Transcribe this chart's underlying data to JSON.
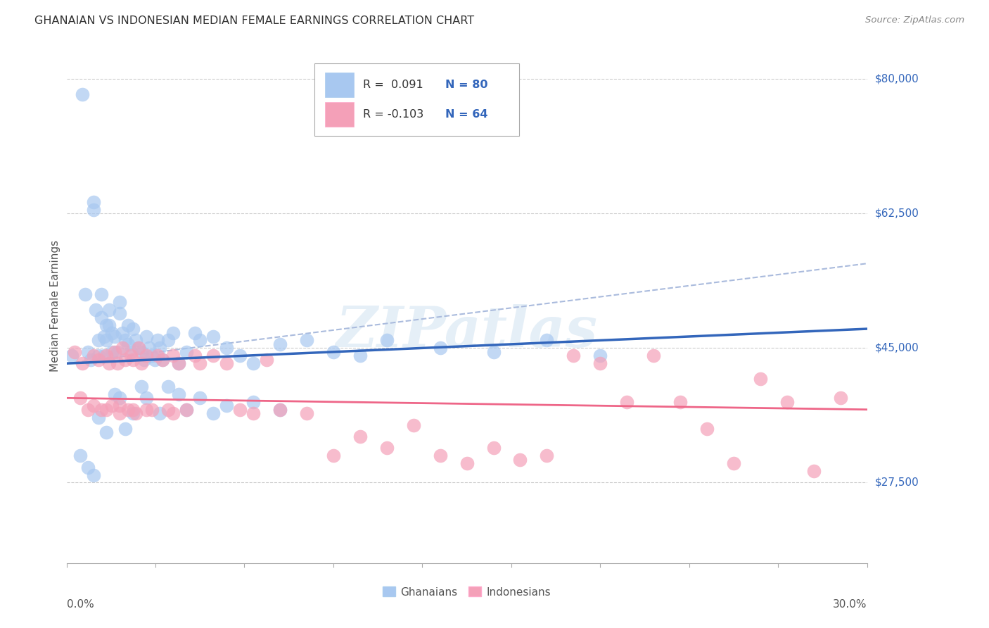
{
  "title": "GHANAIAN VS INDONESIAN MEDIAN FEMALE EARNINGS CORRELATION CHART",
  "source": "Source: ZipAtlas.com",
  "ylabel": "Median Female Earnings",
  "yticks": [
    27500,
    45000,
    62500,
    80000
  ],
  "ytick_labels": [
    "$27,500",
    "$45,000",
    "$62,500",
    "$80,000"
  ],
  "xmin": 0.0,
  "xmax": 0.3,
  "ymin": 17000,
  "ymax": 84000,
  "watermark": "ZIPatlas",
  "ghanaian_color": "#a8c8f0",
  "indonesian_color": "#f4a0b8",
  "line_color_ghanaian": "#3366bb",
  "line_color_indonesian": "#ee6688",
  "trend_ghanaian_x0": 0.0,
  "trend_ghanaian_y0": 43000,
  "trend_ghanaian_x1": 0.3,
  "trend_ghanaian_y1": 47500,
  "trend_indonesian_x0": 0.0,
  "trend_indonesian_y0": 38500,
  "trend_indonesian_x1": 0.3,
  "trend_indonesian_y1": 37000,
  "trend_dashed_x0": 0.0,
  "trend_dashed_y0": 43000,
  "trend_dashed_x1": 0.3,
  "trend_dashed_y1": 56000,
  "ghanaian_x": [
    0.002,
    0.006,
    0.007,
    0.008,
    0.009,
    0.01,
    0.01,
    0.011,
    0.012,
    0.012,
    0.013,
    0.013,
    0.014,
    0.014,
    0.015,
    0.015,
    0.016,
    0.016,
    0.017,
    0.017,
    0.018,
    0.019,
    0.02,
    0.02,
    0.021,
    0.022,
    0.023,
    0.023,
    0.024,
    0.025,
    0.026,
    0.027,
    0.028,
    0.029,
    0.03,
    0.031,
    0.032,
    0.033,
    0.034,
    0.035,
    0.036,
    0.038,
    0.04,
    0.042,
    0.045,
    0.048,
    0.05,
    0.055,
    0.06,
    0.065,
    0.07,
    0.08,
    0.09,
    0.1,
    0.11,
    0.12,
    0.14,
    0.16,
    0.18,
    0.2,
    0.005,
    0.008,
    0.01,
    0.012,
    0.015,
    0.018,
    0.02,
    0.022,
    0.025,
    0.028,
    0.03,
    0.035,
    0.038,
    0.042,
    0.045,
    0.05,
    0.055,
    0.06,
    0.07,
    0.08
  ],
  "ghanaian_y": [
    44000,
    78000,
    52000,
    44500,
    43500,
    63000,
    64000,
    50000,
    46000,
    44000,
    52000,
    49000,
    46500,
    44000,
    48000,
    46000,
    50000,
    48000,
    47000,
    44500,
    46500,
    44500,
    51000,
    49500,
    47000,
    46000,
    48000,
    45500,
    44500,
    47500,
    46000,
    45000,
    44500,
    43500,
    46500,
    45000,
    44000,
    43500,
    46000,
    45000,
    43500,
    46000,
    47000,
    43000,
    44500,
    47000,
    46000,
    46500,
    45000,
    44000,
    43000,
    45500,
    46000,
    44500,
    44000,
    46000,
    45000,
    44500,
    46000,
    44000,
    31000,
    29500,
    28500,
    36000,
    34000,
    39000,
    38500,
    34500,
    36500,
    40000,
    38500,
    36500,
    40000,
    39000,
    37000,
    38500,
    36500,
    37500,
    38000,
    37000
  ],
  "indonesian_x": [
    0.003,
    0.006,
    0.008,
    0.01,
    0.012,
    0.013,
    0.015,
    0.016,
    0.017,
    0.018,
    0.019,
    0.02,
    0.021,
    0.022,
    0.023,
    0.024,
    0.025,
    0.026,
    0.027,
    0.028,
    0.03,
    0.032,
    0.034,
    0.036,
    0.038,
    0.04,
    0.042,
    0.045,
    0.048,
    0.05,
    0.055,
    0.06,
    0.065,
    0.07,
    0.075,
    0.08,
    0.09,
    0.1,
    0.11,
    0.12,
    0.13,
    0.14,
    0.15,
    0.16,
    0.17,
    0.18,
    0.19,
    0.2,
    0.21,
    0.22,
    0.23,
    0.24,
    0.25,
    0.26,
    0.27,
    0.28,
    0.29,
    0.005,
    0.01,
    0.015,
    0.02,
    0.025,
    0.03,
    0.04
  ],
  "indonesian_y": [
    44500,
    43000,
    37000,
    44000,
    43500,
    37000,
    44000,
    43000,
    37500,
    44500,
    43000,
    36500,
    45000,
    43500,
    37000,
    44000,
    43500,
    36500,
    45000,
    43000,
    44000,
    37000,
    44000,
    43500,
    37000,
    44000,
    43000,
    37000,
    44000,
    43000,
    44000,
    43000,
    37000,
    36500,
    43500,
    37000,
    36500,
    31000,
    33500,
    32000,
    35000,
    31000,
    30000,
    32000,
    30500,
    31000,
    44000,
    43000,
    38000,
    44000,
    38000,
    34500,
    30000,
    41000,
    38000,
    29000,
    38500,
    38500,
    37500,
    37000,
    37500,
    37000,
    37000,
    36500
  ]
}
